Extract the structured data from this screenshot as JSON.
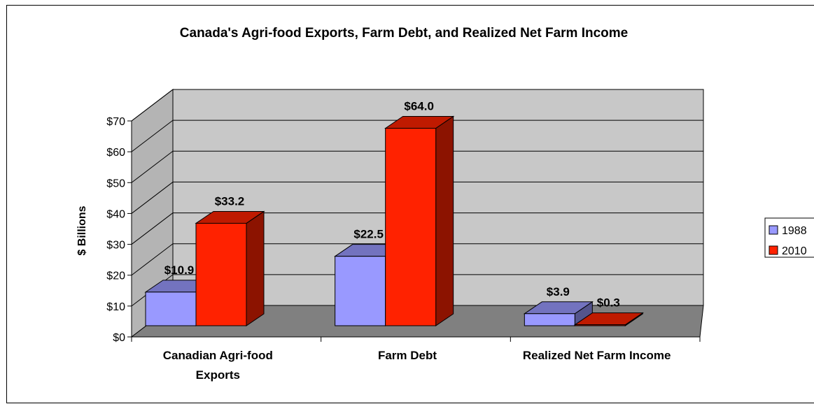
{
  "chart_data": {
    "type": "bar",
    "title": "Canada's Agri-food Exports, Farm Debt, and Realized Net Farm Income",
    "ylabel": "$ Billions",
    "xlabel": "",
    "categories": [
      "Canadian Agri-food Exports",
      "Farm Debt",
      "Realized Net Farm Income"
    ],
    "category_lines": [
      [
        "Canadian Agri-food",
        "Exports"
      ],
      [
        "Farm Debt"
      ],
      [
        "Realized Net Farm Income"
      ]
    ],
    "series": [
      {
        "name": "1988",
        "values": [
          10.9,
          22.5,
          3.9
        ],
        "labels": [
          "$10.9",
          "$22.5",
          "$3.9"
        ],
        "color": "#9999ff"
      },
      {
        "name": "2010",
        "values": [
          33.2,
          64.0,
          0.3
        ],
        "labels": [
          "$33.2",
          "$64.0",
          "$0.3"
        ],
        "color": "#ff2200"
      }
    ],
    "ylim": [
      0,
      70
    ],
    "yticks": [
      "$0",
      "$10",
      "$20",
      "$30",
      "$40",
      "$50",
      "$60",
      "$70"
    ],
    "grid": true,
    "three_d": true,
    "legend_position": "right",
    "legend_labels": [
      "1988",
      "2010"
    ]
  }
}
